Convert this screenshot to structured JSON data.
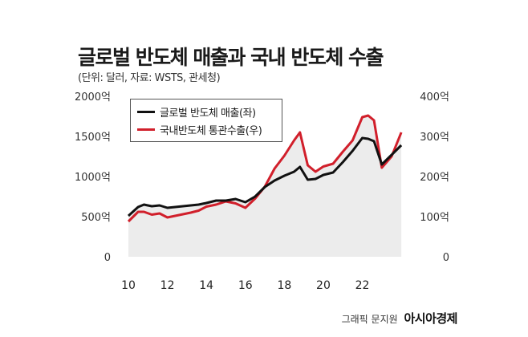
{
  "title": "글로벌 반도체 매출과 국내 반도체 수출",
  "subtitle": "(단위: 달러, 자료: WSTS, 관세청)",
  "credit": {
    "author": "그래픽 문지원",
    "brand": "아시아경제"
  },
  "chart_data": {
    "type": "line",
    "x_ticks": [
      "10",
      "12",
      "14",
      "16",
      "18",
      "20",
      "22"
    ],
    "y_left": {
      "ticks": [
        "0",
        "500억",
        "1000억",
        "1500억",
        "2000억"
      ],
      "lim": [
        0,
        2000
      ]
    },
    "y_right": {
      "ticks": [
        "0",
        "100억",
        "200억",
        "300억",
        "400억"
      ],
      "lim": [
        0,
        400
      ]
    },
    "xlim": [
      2010,
      2024.2
    ],
    "grid": false,
    "legend_position": "top-left",
    "series": [
      {
        "name": "글로벌 반도체 매출(좌)",
        "axis": "left",
        "color": "#111111",
        "x": [
          2010.0,
          2010.5,
          2010.8,
          2011.2,
          2011.6,
          2012.0,
          2012.4,
          2012.8,
          2013.2,
          2013.6,
          2014.0,
          2014.5,
          2015.0,
          2015.5,
          2016.0,
          2016.5,
          2017.0,
          2017.5,
          2018.0,
          2018.5,
          2018.8,
          2019.2,
          2019.6,
          2020.0,
          2020.5,
          2021.0,
          2021.5,
          2022.0,
          2022.3,
          2022.6,
          2023.0,
          2023.5,
          2024.0
        ],
        "values": [
          510,
          620,
          650,
          630,
          640,
          610,
          620,
          630,
          640,
          650,
          670,
          700,
          700,
          720,
          680,
          750,
          870,
          950,
          1010,
          1060,
          1120,
          960,
          970,
          1020,
          1050,
          1180,
          1320,
          1480,
          1470,
          1440,
          1150,
          1270,
          1390
        ]
      },
      {
        "name": "국내반도체 통관수출(우)",
        "axis": "right",
        "color": "#d11f2b",
        "x": [
          2010.0,
          2010.5,
          2010.8,
          2011.2,
          2011.6,
          2012.0,
          2012.4,
          2012.8,
          2013.2,
          2013.6,
          2014.0,
          2014.5,
          2015.0,
          2015.5,
          2016.0,
          2016.5,
          2017.0,
          2017.5,
          2018.0,
          2018.5,
          2018.8,
          2019.2,
          2019.6,
          2020.0,
          2020.5,
          2021.0,
          2021.5,
          2022.0,
          2022.3,
          2022.6,
          2023.0,
          2023.5,
          2024.0
        ],
        "values": [
          88,
          112,
          112,
          105,
          108,
          98,
          102,
          106,
          110,
          115,
          125,
          130,
          138,
          133,
          122,
          145,
          175,
          220,
          252,
          290,
          310,
          228,
          212,
          225,
          232,
          262,
          290,
          348,
          352,
          340,
          222,
          250,
          310
        ]
      }
    ]
  }
}
